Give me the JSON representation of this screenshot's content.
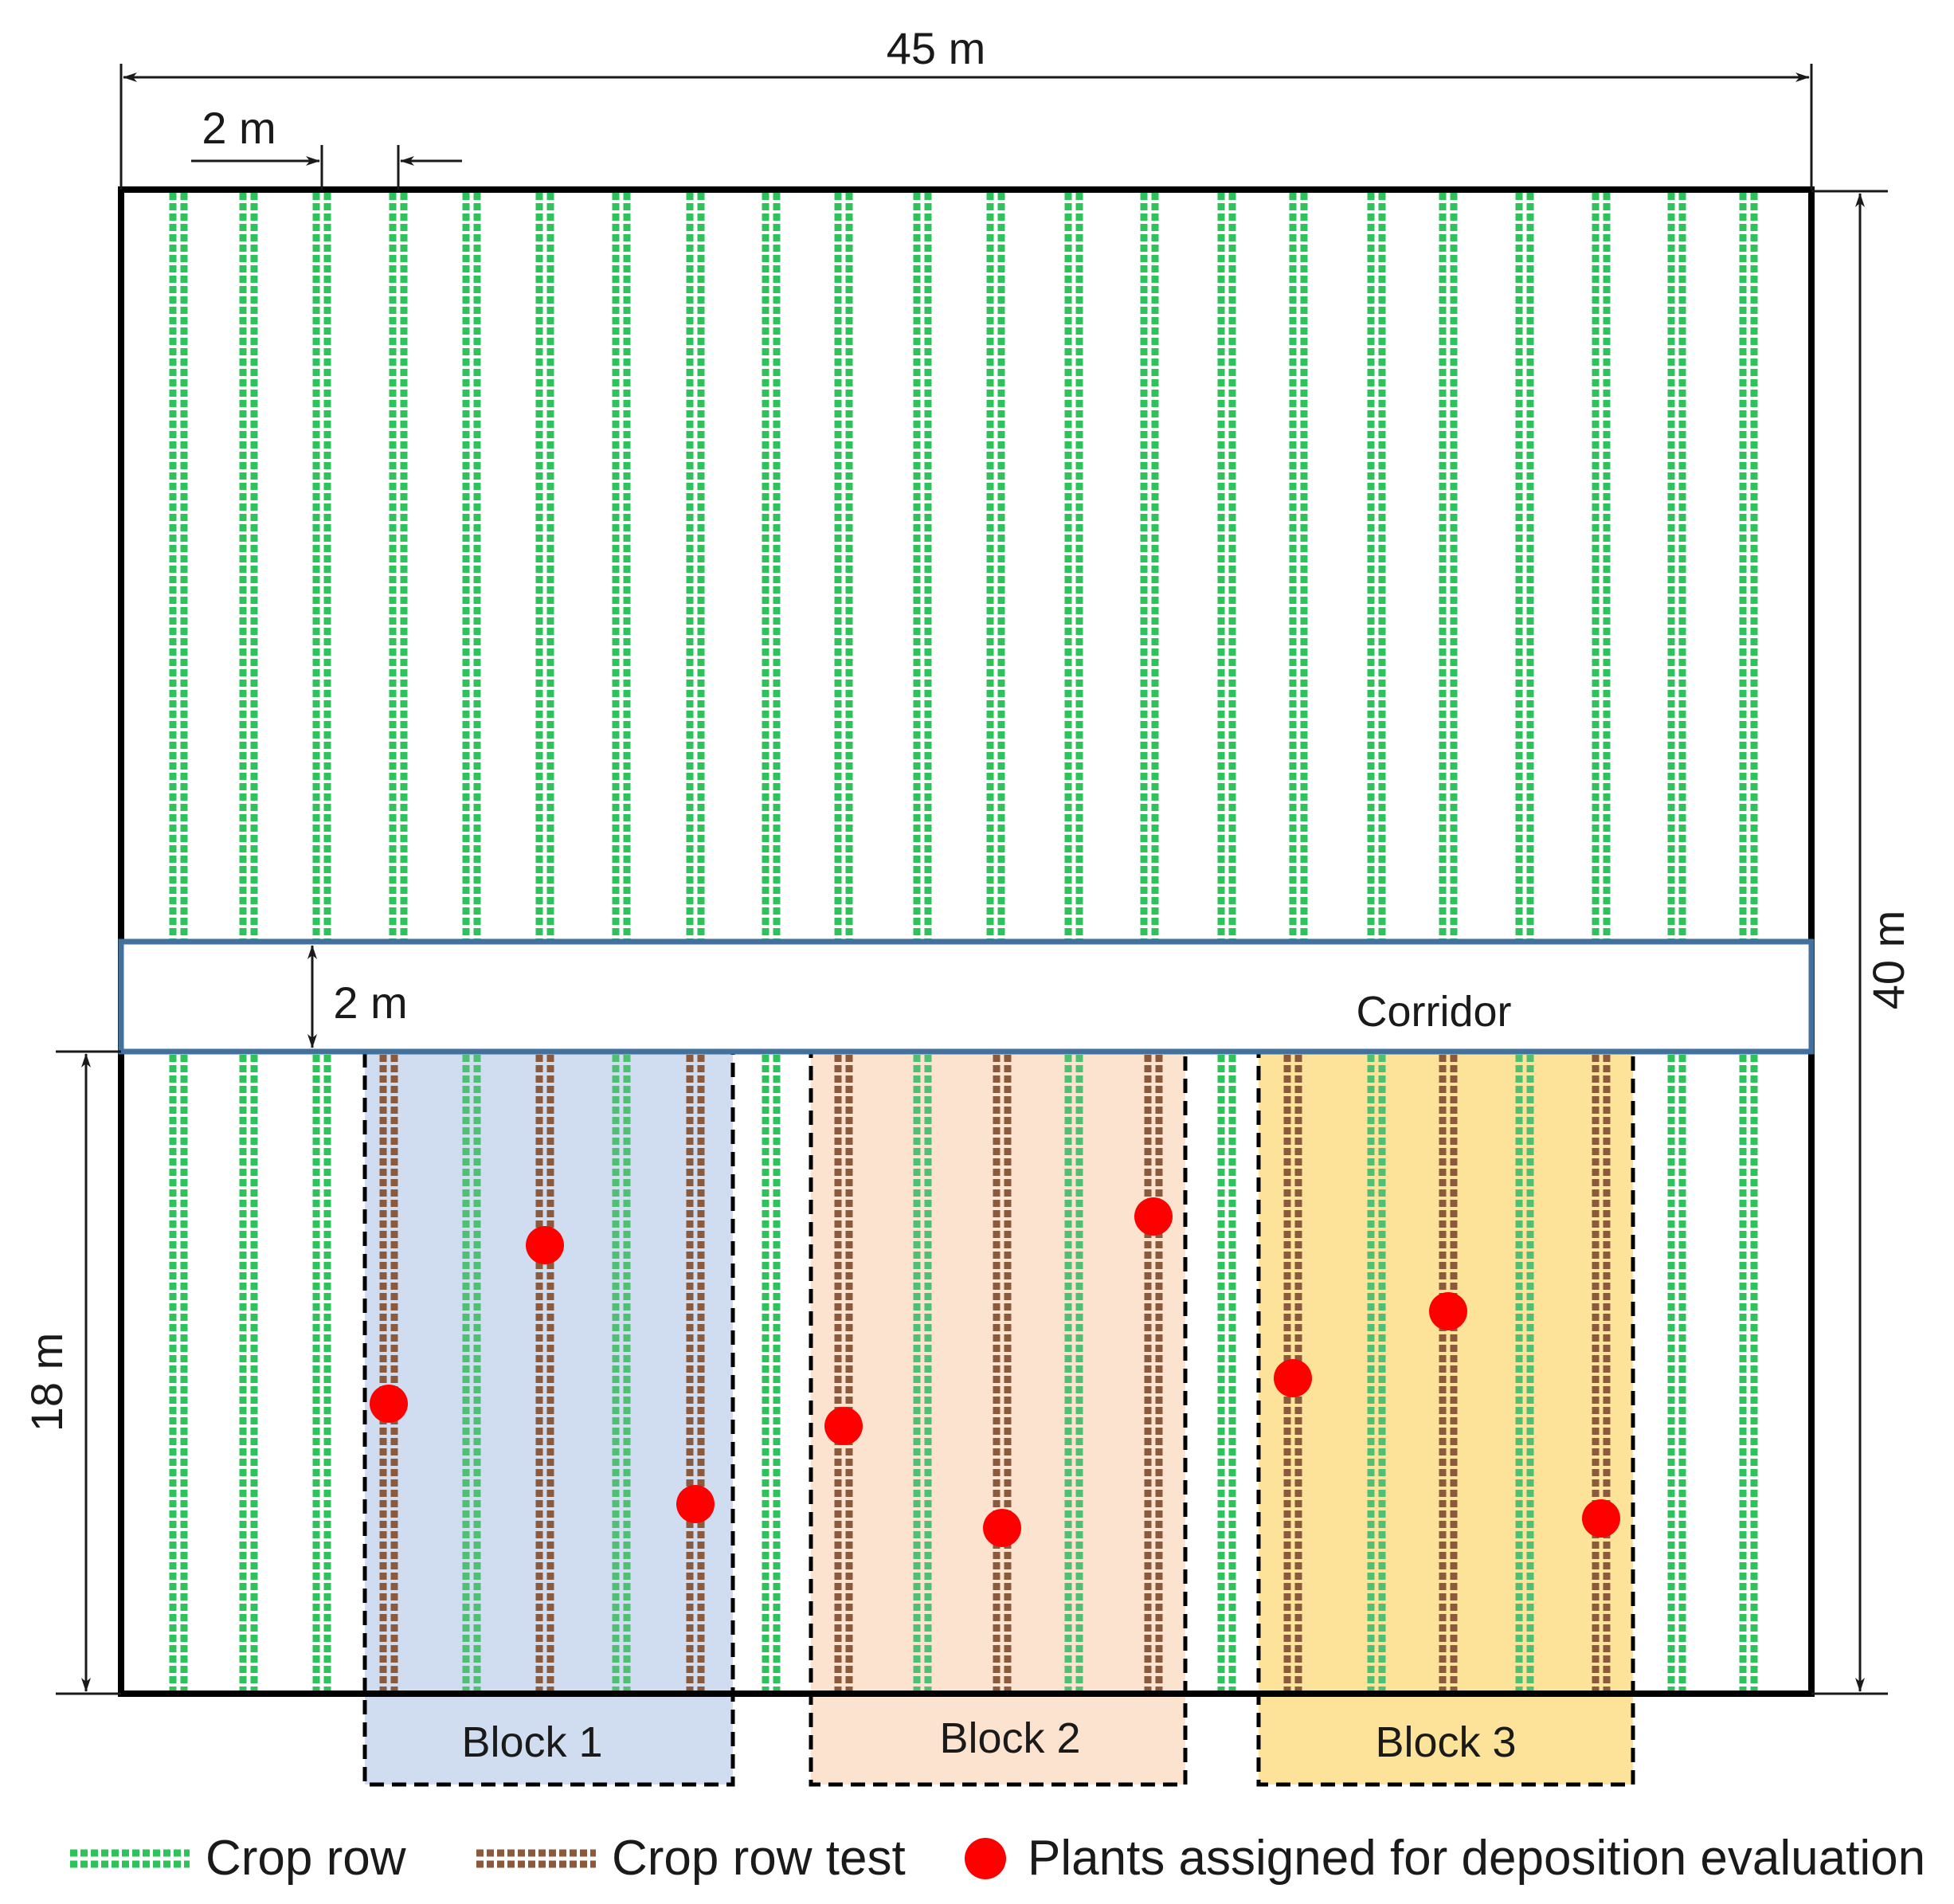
{
  "dimensions": {
    "field_width": "45 m",
    "row_spacing": "2 m",
    "field_length": "40 m",
    "corridor_width": "2 m",
    "test_length": "18 m"
  },
  "corridor": {
    "label": "Corridor"
  },
  "blocks": [
    {
      "label": "Block 1",
      "color": "#d0dcef"
    },
    {
      "label": "Block 2",
      "color": "#fbe3cf"
    },
    {
      "label": "Block 3",
      "color": "#fde399"
    }
  ],
  "legend": {
    "crop_row": "Crop row",
    "crop_row_test": "Crop row test",
    "plants": "Plants assigned for deposition evaluation"
  },
  "colors": {
    "crop_row": "#2ec35a",
    "crop_row_test": "#8b5a3c",
    "plant_marker": "#ff0000",
    "corridor_border": "#41719c",
    "field_border": "#000000"
  }
}
